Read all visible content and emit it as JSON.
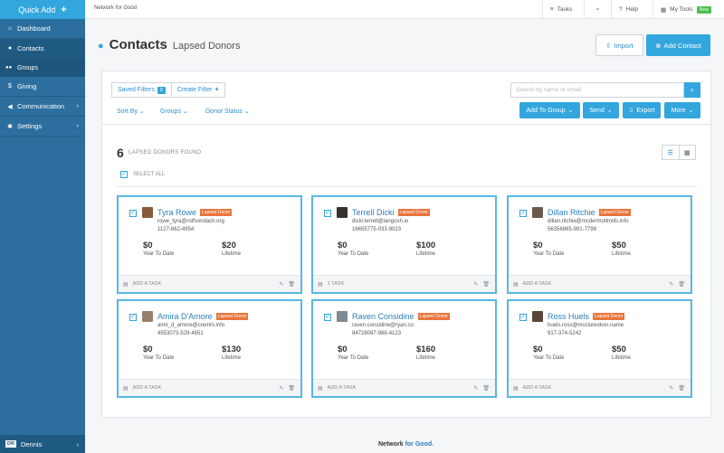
{
  "sidebar": {
    "quick_add": "Quick Add",
    "items": [
      {
        "label": "Dashboard",
        "icon": "home-icon"
      },
      {
        "label": "Contacts",
        "icon": "person-icon"
      },
      {
        "label": "Groups",
        "icon": "group-icon"
      },
      {
        "label": "Giving",
        "icon": "dollar-icon"
      },
      {
        "label": "Communication",
        "icon": "megaphone-icon"
      },
      {
        "label": "Settings",
        "icon": "gear-icon"
      }
    ],
    "user": {
      "initials": "DR",
      "name": "Dennis"
    }
  },
  "topbar": {
    "brand": "Network for Good",
    "tasks": "Tasks",
    "help": "Help",
    "my_tools": "My Tools",
    "new_badge": "New"
  },
  "header": {
    "title": "Contacts",
    "subtitle": "Lapsed Donors",
    "import_label": "Import",
    "add_contact_label": "Add Contact"
  },
  "toolbar": {
    "saved_filters": "Saved Filters",
    "saved_filters_count": "0",
    "create_filter": "Create Filter",
    "sort_by": "Sort By",
    "groups": "Groups",
    "donor_status": "Donor Status",
    "search_placeholder": "Search by name or email",
    "add_to_group": "Add To Group",
    "send": "Send",
    "export": "Export",
    "more": "More"
  },
  "results": {
    "count": "6",
    "label": "LAPSED DONORS FOUND",
    "select_all": "SELECT ALL"
  },
  "donors": [
    {
      "name": "Tyra Rowe",
      "tag": "Lapsed Donor",
      "email": "rowe_tyra@rolfsondach.org",
      "phone": "1127-662-4954",
      "ytd": "$0",
      "ytd_label": "Year To Date",
      "lifetime": "$20",
      "lifetime_label": "Lifetime",
      "task": "ADD A TASK",
      "avatar_color": "#8a5a3c"
    },
    {
      "name": "Terrell Dicki",
      "tag": "Lapsed Donor",
      "email": "dicki.terrell@langosh.io",
      "phone": "16655775-033-9023",
      "ytd": "$0",
      "ytd_label": "Year To Date",
      "lifetime": "$100",
      "lifetime_label": "Lifetime",
      "task": "1 TASK",
      "avatar_color": "#3b3030"
    },
    {
      "name": "Dillan Ritchie",
      "tag": "Lapsed Donor",
      "email": "dillan.ritchie@mcdermottmills.info",
      "phone": "56356865-991-7798",
      "ytd": "$0",
      "ytd_label": "Year To Date",
      "lifetime": "$50",
      "lifetime_label": "Lifetime",
      "task": "ADD A TASK",
      "avatar_color": "#6b5b4e"
    },
    {
      "name": "Amira D'Amore",
      "tag": "Lapsed Donor",
      "email": "amir_d_amore@cremin.info",
      "phone": "4553073-529-4651",
      "ytd": "$0",
      "ytd_label": "Year To Date",
      "lifetime": "$130",
      "lifetime_label": "Lifetime",
      "task": "ADD A TASK",
      "avatar_color": "#9a7f6c"
    },
    {
      "name": "Raven Considine",
      "tag": "Lapsed Donor",
      "email": "raven.considine@ryan.co",
      "phone": "84728087-988-4123",
      "ytd": "$0",
      "ytd_label": "Year To Date",
      "lifetime": "$160",
      "lifetime_label": "Lifetime",
      "task": "ADD A TASK",
      "avatar_color": "#7f8a93"
    },
    {
      "name": "Ross Huels",
      "tag": "Lapsed Donor",
      "email": "huels.ross@mcclureokon.name",
      "phone": "917-374-5242",
      "ytd": "$0",
      "ytd_label": "Year To Date",
      "lifetime": "$50",
      "lifetime_label": "Lifetime",
      "task": "ADD A TASK",
      "avatar_color": "#5a4636"
    }
  ],
  "footer": {
    "brand_a": "Network",
    "brand_b": "for Good."
  },
  "colors": {
    "accent": "#33a6de",
    "sidebar": "#2c6f9e",
    "tag": "#e8743b"
  }
}
